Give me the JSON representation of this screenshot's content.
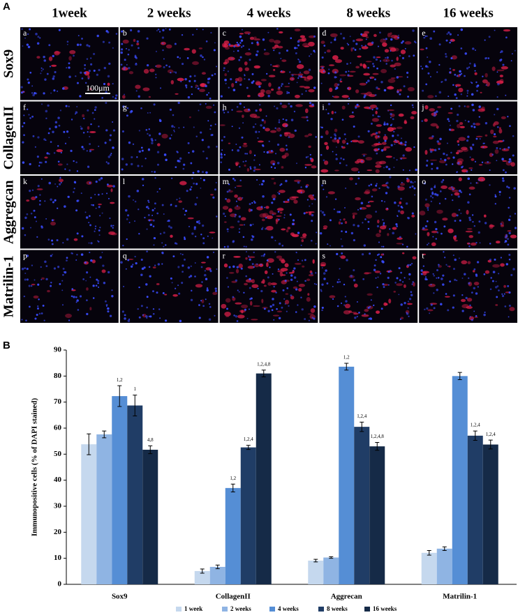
{
  "panel_a": {
    "label": "A",
    "columns": [
      "1week",
      "2 weeks",
      "4 weeks",
      "8 weeks",
      "16 weeks"
    ],
    "rows": [
      "Sox9",
      "CollagenII",
      "Aggregcan",
      "Matrilin-1"
    ],
    "letters": [
      "a",
      "b",
      "c",
      "d",
      "e",
      "f",
      "g",
      "h",
      "i",
      "j",
      "k",
      "l",
      "m",
      "n",
      "o",
      "p",
      "q",
      "r",
      "s",
      "t"
    ],
    "scale_bar": "100μm"
  },
  "chart_data": {
    "type": "bar",
    "panel_label": "B",
    "y_label": "Immunopositive cells (% of DAPI stained)",
    "categories": [
      "Sox9",
      "CollagenII",
      "Aggrecan",
      "Matrilin-1"
    ],
    "series": [
      {
        "name": "1 week",
        "color": "#c5d8ee",
        "values": [
          53.8,
          5.1,
          9.1,
          12.1
        ],
        "errors": [
          4,
          0.8,
          0.5,
          0.9
        ],
        "annotations": [
          null,
          null,
          null,
          null
        ]
      },
      {
        "name": "2 weeks",
        "color": "#8fb4e3",
        "values": [
          57.6,
          6.7,
          10.3,
          13.7
        ],
        "errors": [
          1.3,
          0.7,
          0.3,
          0.7
        ],
        "annotations": [
          null,
          null,
          null,
          null
        ]
      },
      {
        "name": "4 weeks",
        "color": "#558ed5",
        "values": [
          72.3,
          37,
          83.6,
          80
        ],
        "errors": [
          4,
          1.5,
          1.3,
          1.4
        ],
        "annotations": [
          "1,2",
          "1,2",
          "1,2",
          null
        ]
      },
      {
        "name": "8 weeks",
        "color": "#203d66",
        "values": [
          68.7,
          52.6,
          60.5,
          57.1
        ],
        "errors": [
          4,
          0.8,
          1.8,
          1.8
        ],
        "annotations": [
          "1",
          "1,2,4",
          "1,2,4",
          "1,2,4"
        ]
      },
      {
        "name": "16 weeks",
        "color": "#152a47",
        "values": [
          51.7,
          81,
          53,
          53.7
        ],
        "errors": [
          1.5,
          1.3,
          1.5,
          1.7
        ],
        "annotations": [
          "4,8",
          "1,2,4,8",
          "1,2,4,8",
          "1,2,4"
        ]
      }
    ],
    "ylim": [
      0,
      90
    ],
    "yticks": [
      0,
      10,
      20,
      30,
      40,
      50,
      60,
      70,
      80,
      90
    ],
    "grid": false,
    "legend": "bottom"
  }
}
